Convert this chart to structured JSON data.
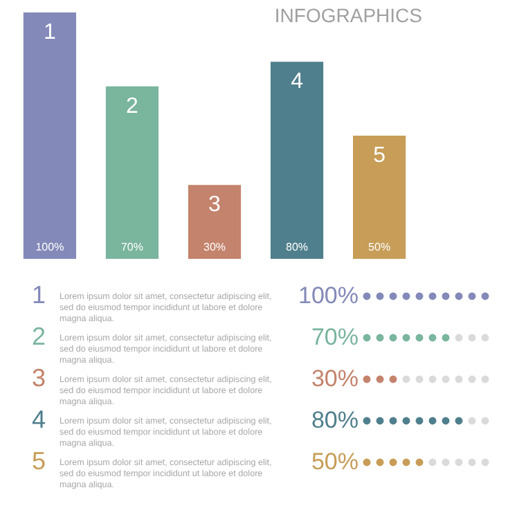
{
  "chart_data": {
    "type": "bar",
    "title": "INFOGRAPHICS",
    "categories": [
      "1",
      "2",
      "3",
      "4",
      "5"
    ],
    "values": [
      100,
      70,
      30,
      80,
      50
    ],
    "value_labels": [
      "100%",
      "70%",
      "30%",
      "80%",
      "50%"
    ],
    "colors": [
      "#8389b8",
      "#7ab59e",
      "#c4836c",
      "#4f7f8c",
      "#c79d57"
    ],
    "data_labels": true,
    "annotations": [
      "Lorem ipsum dolor sit amet, consectetur adipiscing elit,\nsed do eiusmod tempor incididunt ut labore et dolore\nmagna aliqua.",
      "Lorem ipsum dolor sit amet, consectetur adipiscing elit,\nsed do eiusmod tempor incididunt ut labore et dolore\nmagna aliqua.",
      "Lorem ipsum dolor sit amet, consectetur adipiscing elit,\nsed do eiusmod tempor incididunt ut labore et dolore\nmagna aliqua.",
      "Lorem ipsum dolor sit amet, consectetur adipiscing elit,\nsed do eiusmod tempor incididunt ut labore et dolore\nmagna aliqua.",
      "Lorem ipsum dolor sit amet, consectetur adipiscing elit,\nsed do eiusmod tempor incididunt ut labore et dolore\nmagna aliqua."
    ],
    "ylim": [
      0,
      100
    ],
    "grid": false
  }
}
